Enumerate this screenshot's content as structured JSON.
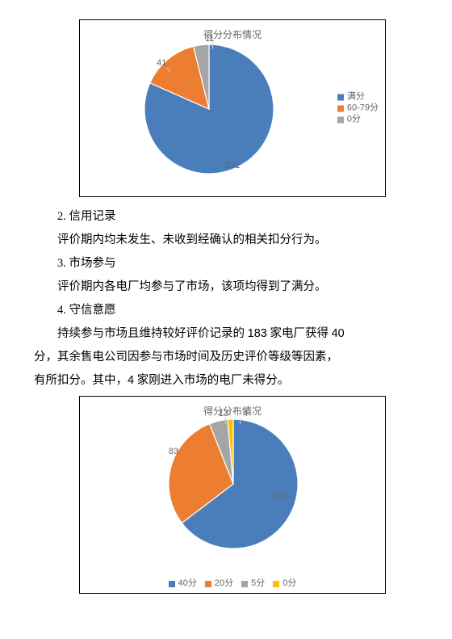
{
  "chart1": {
    "title": "得分分布情况",
    "type": "pie",
    "values": [
      231,
      41,
      11
    ],
    "labels": [
      "231",
      "41",
      "11"
    ],
    "colors": [
      "#4a7ebb",
      "#ed7d31",
      "#a5a5a5"
    ],
    "legend": [
      {
        "label": "满分",
        "color": "#4a7ebb"
      },
      {
        "label": "60-79分",
        "color": "#ed7d31"
      },
      {
        "label": "0分",
        "color": "#a5a5a5"
      }
    ]
  },
  "chart2": {
    "title": "得分分布情况",
    "type": "pie",
    "values": [
      183,
      83,
      13,
      4
    ],
    "labels": [
      "183",
      "83",
      "13",
      "4"
    ],
    "colors": [
      "#4a7ebb",
      "#ed7d31",
      "#a5a5a5",
      "#ffc000"
    ],
    "legend": [
      {
        "label": "40分",
        "color": "#4a7ebb"
      },
      {
        "label": "20分",
        "color": "#ed7d31"
      },
      {
        "label": "5分",
        "color": "#a5a5a5"
      },
      {
        "label": "0分",
        "color": "#ffc000"
      }
    ]
  },
  "text": {
    "h2": "2. 信用记录",
    "p2": "评价期内均未发生、未收到经确认的相关扣分行为。",
    "h3": "3. 市场参与",
    "p3": "评价期内各电厂均参与了市场，该项均得到了满分。",
    "h4": "4. 守信意愿",
    "p4a_pre": "持续参与市场且维持较好评价记录的 ",
    "p4a_mid": " 家电厂获得 ",
    "p4a_num1": "183",
    "p4a_num2": "40",
    "p4b": "分，其余售电公司因参与市场时间及历史评价等级等因素，",
    "p4c_pre": "有所扣分。其中，",
    "p4c_num": "4",
    "p4c_post": " 家刚进入市场的电厂未得分。"
  }
}
